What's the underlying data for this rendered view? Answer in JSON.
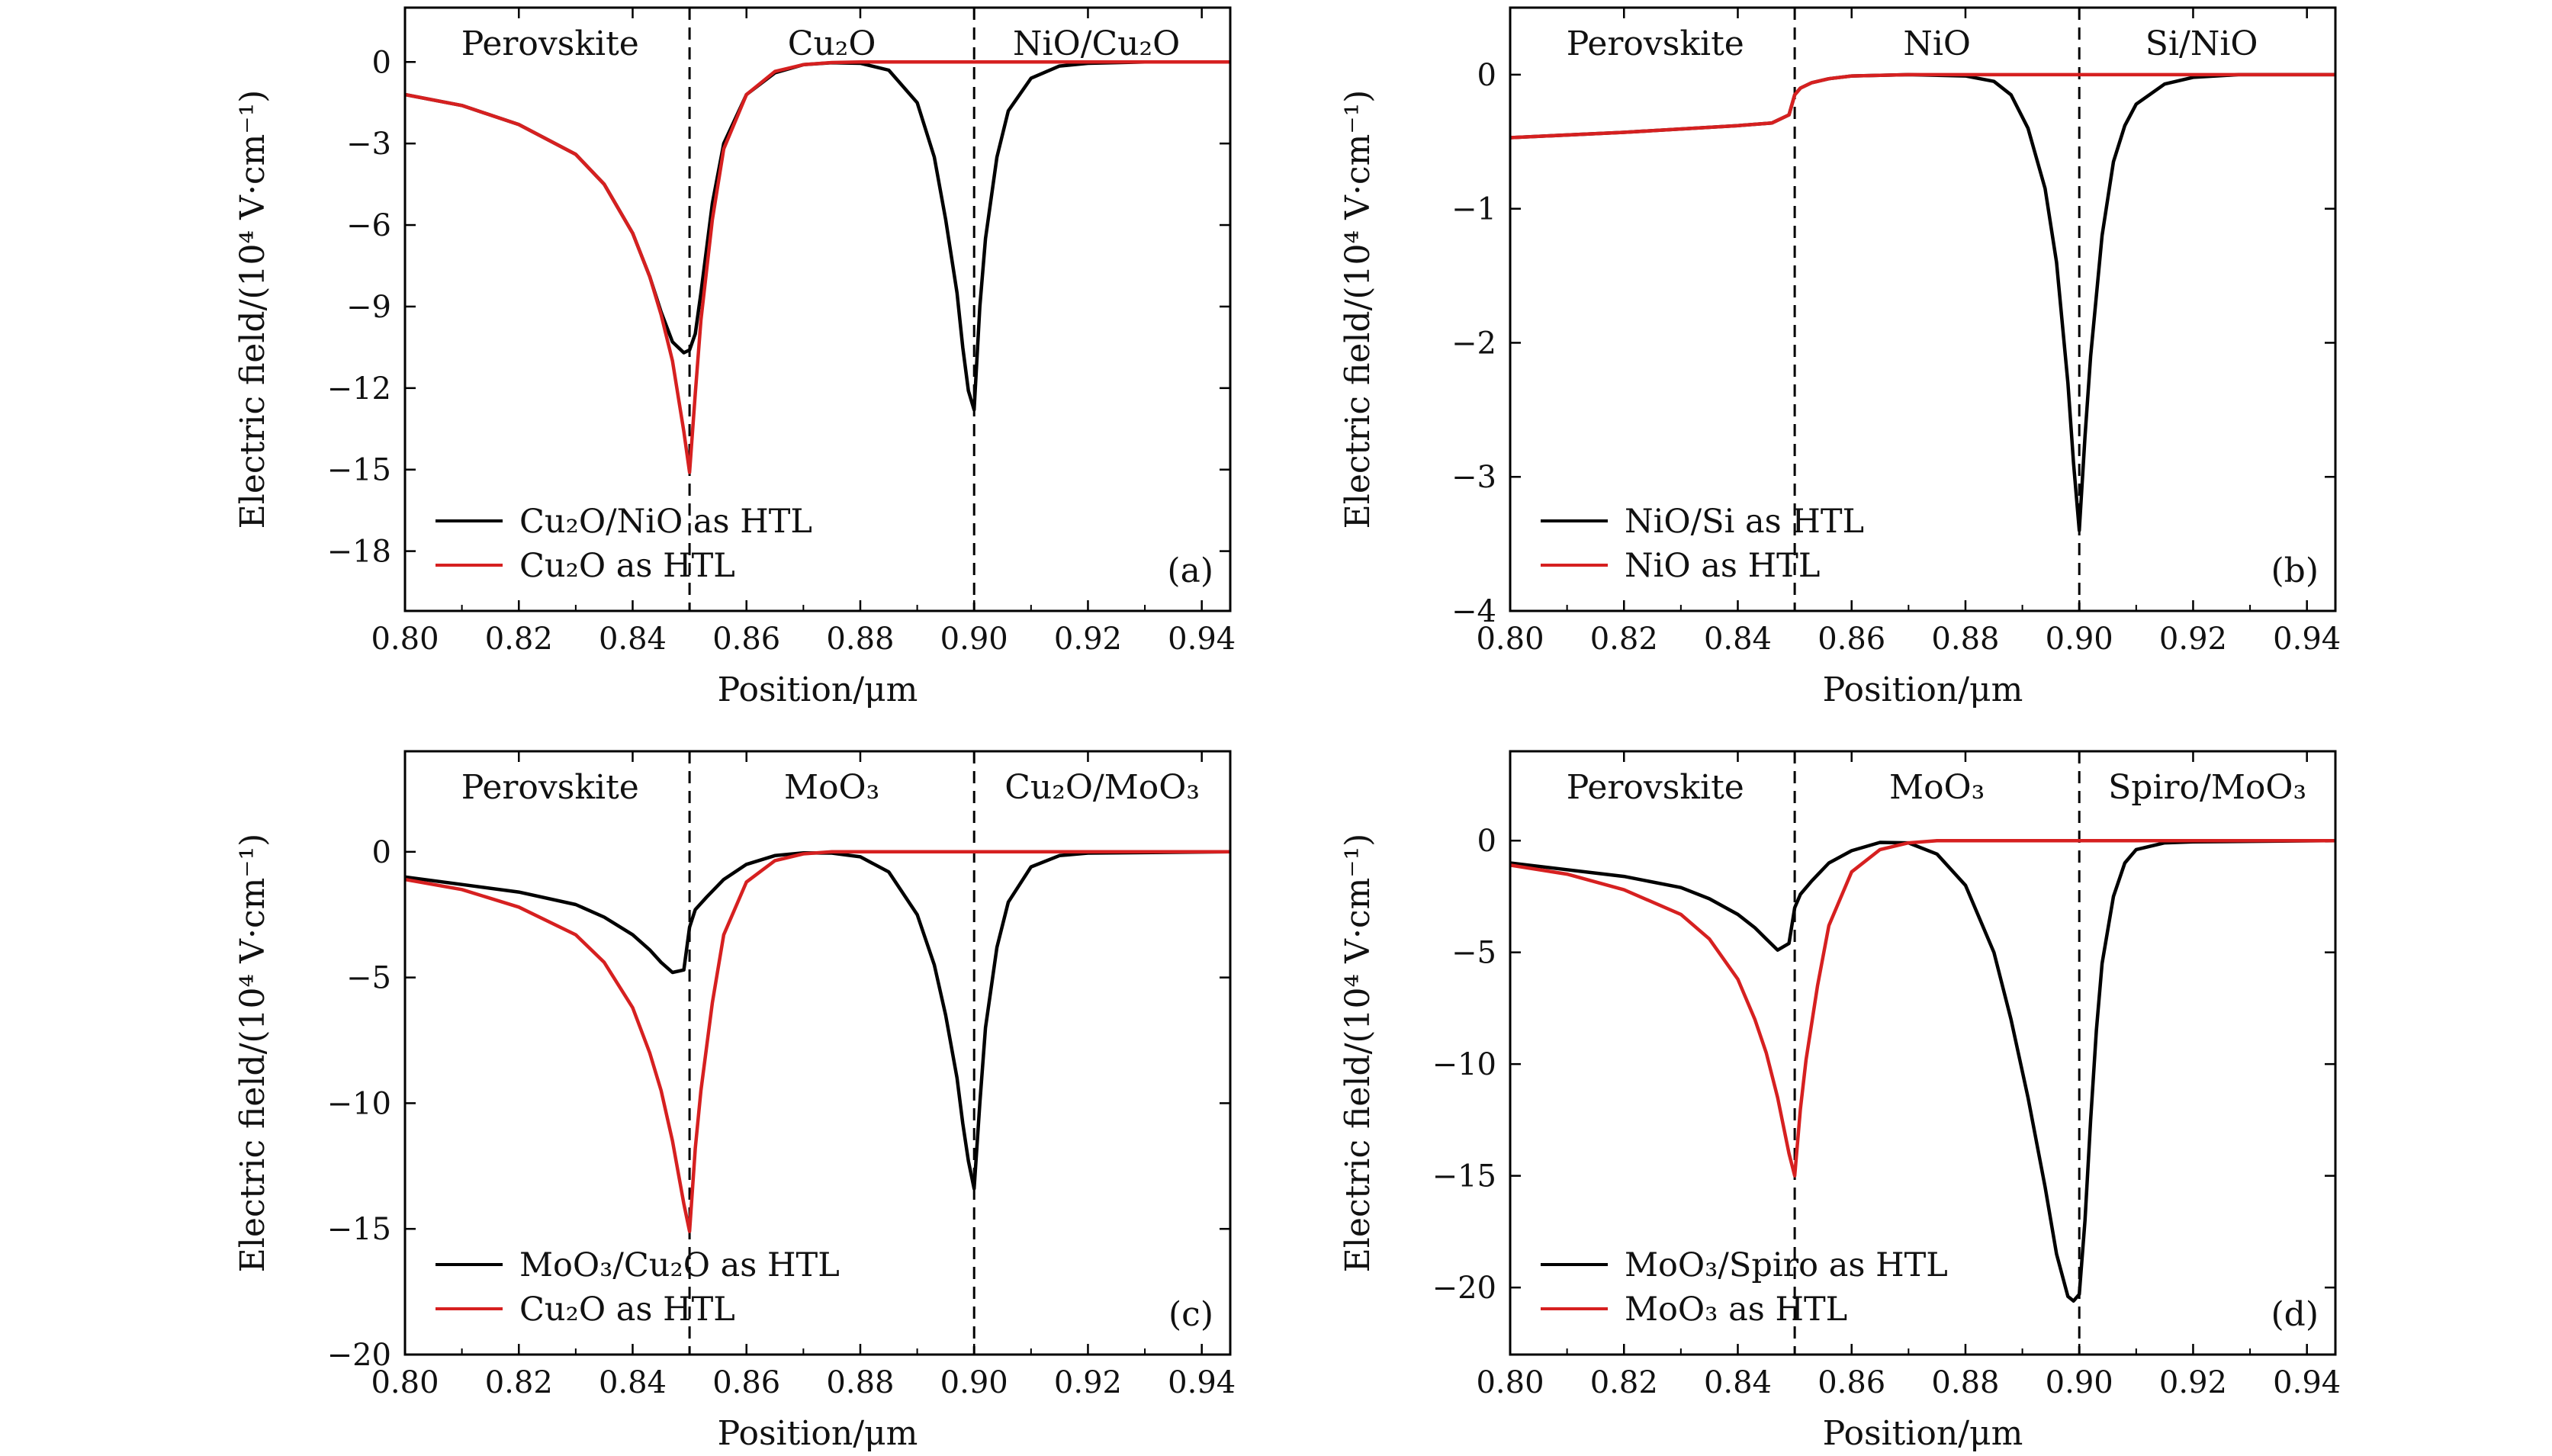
{
  "chart_data": [
    {
      "id": "a",
      "type": "line",
      "panel_label": "(a)",
      "xlabel": "Position/μm",
      "ylabel": "Electric field/(10⁴ V·cm⁻¹)",
      "xlim": [
        0.8,
        0.945
      ],
      "ylim": [
        -20.2,
        2.0
      ],
      "xticks": [
        0.8,
        0.82,
        0.84,
        0.86,
        0.88,
        0.9,
        0.92,
        0.94
      ],
      "xtick_labels": [
        "0.80",
        "0.82",
        "0.84",
        "0.86",
        "0.88",
        "0.90",
        "0.92",
        "0.94"
      ],
      "yticks": [
        0,
        -3,
        -6,
        -9,
        -12,
        -15,
        -18
      ],
      "ytick_labels": [
        "0",
        "−3",
        "−6",
        "−9",
        "−12",
        "−15",
        "−18"
      ],
      "boundaries": [
        0.85,
        0.9
      ],
      "regions": [
        {
          "label": "Perovskite",
          "x": 0.8255
        },
        {
          "label": "Cu₂O",
          "x": 0.875
        },
        {
          "label": "NiO/Cu₂O",
          "x": 0.9215
        }
      ],
      "legend_position": "bottom-left",
      "series": [
        {
          "name": "Cu₂O/NiO as HTL",
          "color": "#000000",
          "x": [
            0.8,
            0.81,
            0.82,
            0.83,
            0.835,
            0.84,
            0.843,
            0.845,
            0.847,
            0.849,
            0.85,
            0.851,
            0.852,
            0.854,
            0.856,
            0.86,
            0.865,
            0.87,
            0.875,
            0.88,
            0.885,
            0.89,
            0.893,
            0.895,
            0.897,
            0.898,
            0.899,
            0.9,
            0.901,
            0.902,
            0.904,
            0.906,
            0.91,
            0.915,
            0.92,
            0.93,
            0.945
          ],
          "y": [
            -1.2,
            -1.6,
            -2.3,
            -3.4,
            -4.5,
            -6.3,
            -7.9,
            -9.2,
            -10.3,
            -10.7,
            -10.6,
            -10.0,
            -8.5,
            -5.2,
            -3.0,
            -1.2,
            -0.4,
            -0.1,
            -0.03,
            -0.05,
            -0.3,
            -1.5,
            -3.5,
            -5.8,
            -8.5,
            -10.5,
            -12.1,
            -12.8,
            -9.0,
            -6.5,
            -3.5,
            -1.8,
            -0.6,
            -0.15,
            -0.05,
            0,
            0
          ]
        },
        {
          "name": "Cu₂O as HTL",
          "color": "#d62020",
          "x": [
            0.8,
            0.81,
            0.82,
            0.83,
            0.835,
            0.84,
            0.843,
            0.845,
            0.847,
            0.849,
            0.85,
            0.851,
            0.852,
            0.854,
            0.856,
            0.86,
            0.865,
            0.87,
            0.875,
            0.88,
            0.9,
            0.945
          ],
          "y": [
            -1.2,
            -1.6,
            -2.3,
            -3.4,
            -4.5,
            -6.3,
            -7.9,
            -9.3,
            -11.0,
            -13.6,
            -15.1,
            -12.2,
            -9.5,
            -5.8,
            -3.2,
            -1.2,
            -0.35,
            -0.1,
            -0.02,
            0,
            0,
            0
          ]
        }
      ]
    },
    {
      "id": "b",
      "type": "line",
      "panel_label": "(b)",
      "xlabel": "Position/μm",
      "ylabel": "Electric field/(10⁴ V·cm⁻¹)",
      "xlim": [
        0.8,
        0.945
      ],
      "ylim": [
        -4.0,
        0.5
      ],
      "xticks": [
        0.8,
        0.82,
        0.84,
        0.86,
        0.88,
        0.9,
        0.92,
        0.94
      ],
      "xtick_labels": [
        "0.80",
        "0.82",
        "0.84",
        "0.86",
        "0.88",
        "0.90",
        "0.92",
        "0.94"
      ],
      "yticks": [
        0,
        -1,
        -2,
        -3,
        -4
      ],
      "ytick_labels": [
        "0",
        "−1",
        "−2",
        "−3",
        "−4"
      ],
      "boundaries": [
        0.85,
        0.9
      ],
      "regions": [
        {
          "label": "Perovskite",
          "x": 0.8255
        },
        {
          "label": "NiO",
          "x": 0.875
        },
        {
          "label": "Si/NiO",
          "x": 0.9215
        }
      ],
      "legend_position": "bottom-left",
      "series": [
        {
          "name": "NiO/Si as HTL",
          "color": "#000000",
          "x": [
            0.8,
            0.82,
            0.84,
            0.846,
            0.849,
            0.85,
            0.851,
            0.853,
            0.856,
            0.86,
            0.87,
            0.88,
            0.885,
            0.888,
            0.891,
            0.894,
            0.896,
            0.898,
            0.899,
            0.9,
            0.901,
            0.902,
            0.904,
            0.906,
            0.908,
            0.91,
            0.915,
            0.92,
            0.928,
            0.945
          ],
          "y": [
            -0.47,
            -0.43,
            -0.38,
            -0.36,
            -0.3,
            -0.15,
            -0.1,
            -0.06,
            -0.03,
            -0.01,
            0,
            -0.01,
            -0.05,
            -0.15,
            -0.4,
            -0.85,
            -1.4,
            -2.3,
            -2.9,
            -3.4,
            -2.7,
            -2.1,
            -1.2,
            -0.65,
            -0.38,
            -0.22,
            -0.07,
            -0.02,
            0,
            0
          ]
        },
        {
          "name": "NiO as HTL",
          "color": "#d62020",
          "x": [
            0.8,
            0.82,
            0.84,
            0.846,
            0.849,
            0.85,
            0.851,
            0.853,
            0.856,
            0.86,
            0.87,
            0.9,
            0.945
          ],
          "y": [
            -0.47,
            -0.43,
            -0.38,
            -0.36,
            -0.3,
            -0.15,
            -0.1,
            -0.06,
            -0.03,
            -0.01,
            0,
            0,
            0
          ]
        }
      ]
    },
    {
      "id": "c",
      "type": "line",
      "panel_label": "(c)",
      "xlabel": "Position/μm",
      "ylabel": "Electric field/(10⁴ V·cm⁻¹)",
      "xlim": [
        0.8,
        0.945
      ],
      "ylim": [
        -20.0,
        4.0
      ],
      "xticks": [
        0.8,
        0.82,
        0.84,
        0.86,
        0.88,
        0.9,
        0.92,
        0.94
      ],
      "xtick_labels": [
        "0.80",
        "0.82",
        "0.84",
        "0.86",
        "0.88",
        "0.90",
        "0.92",
        "0.94"
      ],
      "yticks": [
        0,
        -5,
        -10,
        -15,
        -20
      ],
      "ytick_labels": [
        "0",
        "−5",
        "−10",
        "−15",
        "−20"
      ],
      "boundaries": [
        0.85,
        0.9
      ],
      "regions": [
        {
          "label": "Perovskite",
          "x": 0.8255
        },
        {
          "label": "MoO₃",
          "x": 0.875
        },
        {
          "label": "Cu₂O/MoO₃",
          "x": 0.9225
        }
      ],
      "legend_position": "bottom-left",
      "series": [
        {
          "name": "MoO₃/Cu₂O as HTL",
          "color": "#000000",
          "x": [
            0.8,
            0.81,
            0.82,
            0.83,
            0.835,
            0.84,
            0.843,
            0.845,
            0.847,
            0.849,
            0.85,
            0.851,
            0.853,
            0.856,
            0.86,
            0.865,
            0.87,
            0.875,
            0.88,
            0.885,
            0.89,
            0.893,
            0.895,
            0.897,
            0.898,
            0.899,
            0.9,
            0.901,
            0.902,
            0.904,
            0.906,
            0.91,
            0.915,
            0.92,
            0.945
          ],
          "y": [
            -1.0,
            -1.3,
            -1.6,
            -2.1,
            -2.6,
            -3.3,
            -3.9,
            -4.4,
            -4.8,
            -4.7,
            -3.0,
            -2.3,
            -1.8,
            -1.1,
            -0.5,
            -0.15,
            -0.04,
            -0.05,
            -0.2,
            -0.8,
            -2.5,
            -4.5,
            -6.5,
            -9.0,
            -10.8,
            -12.3,
            -13.4,
            -10.0,
            -7.0,
            -3.8,
            -2.0,
            -0.6,
            -0.15,
            -0.05,
            0
          ]
        },
        {
          "name": "Cu₂O as HTL",
          "color": "#d62020",
          "x": [
            0.8,
            0.81,
            0.82,
            0.83,
            0.835,
            0.84,
            0.843,
            0.845,
            0.847,
            0.849,
            0.85,
            0.851,
            0.852,
            0.854,
            0.856,
            0.86,
            0.865,
            0.87,
            0.875,
            0.88,
            0.9,
            0.945
          ],
          "y": [
            -1.1,
            -1.5,
            -2.2,
            -3.3,
            -4.4,
            -6.2,
            -8.0,
            -9.5,
            -11.5,
            -14.0,
            -15.1,
            -11.8,
            -9.5,
            -6.0,
            -3.3,
            -1.2,
            -0.35,
            -0.08,
            0,
            0,
            0,
            0
          ]
        }
      ]
    },
    {
      "id": "d",
      "type": "line",
      "panel_label": "(d)",
      "xlabel": "Position/μm",
      "ylabel": "Electric field/(10⁴ V·cm⁻¹)",
      "xlim": [
        0.8,
        0.945
      ],
      "ylim": [
        -23.0,
        4.0
      ],
      "xticks": [
        0.8,
        0.82,
        0.84,
        0.86,
        0.88,
        0.9,
        0.92,
        0.94
      ],
      "xtick_labels": [
        "0.80",
        "0.82",
        "0.84",
        "0.86",
        "0.88",
        "0.90",
        "0.92",
        "0.94"
      ],
      "yticks": [
        0,
        -5,
        -10,
        -15,
        -20
      ],
      "ytick_labels": [
        "0",
        "−5",
        "−10",
        "−15",
        "−20"
      ],
      "boundaries": [
        0.85,
        0.9
      ],
      "regions": [
        {
          "label": "Perovskite",
          "x": 0.8255
        },
        {
          "label": "MoO₃",
          "x": 0.875
        },
        {
          "label": "Spiro/MoO₃",
          "x": 0.9225
        }
      ],
      "legend_position": "bottom-left",
      "series": [
        {
          "name": "MoO₃/Spiro as HTL",
          "color": "#000000",
          "x": [
            0.8,
            0.81,
            0.82,
            0.83,
            0.835,
            0.84,
            0.843,
            0.845,
            0.847,
            0.849,
            0.85,
            0.851,
            0.853,
            0.856,
            0.86,
            0.865,
            0.87,
            0.875,
            0.88,
            0.885,
            0.888,
            0.891,
            0.894,
            0.896,
            0.898,
            0.899,
            0.9,
            0.901,
            0.902,
            0.903,
            0.904,
            0.906,
            0.908,
            0.91,
            0.915,
            0.92,
            0.945
          ],
          "y": [
            -1.0,
            -1.3,
            -1.6,
            -2.1,
            -2.6,
            -3.3,
            -3.9,
            -4.4,
            -4.9,
            -4.6,
            -3.0,
            -2.4,
            -1.8,
            -1.0,
            -0.45,
            -0.08,
            -0.1,
            -0.6,
            -2.0,
            -5.0,
            -8.0,
            -11.5,
            -15.5,
            -18.5,
            -20.4,
            -20.6,
            -20.3,
            -17.0,
            -12.5,
            -8.5,
            -5.5,
            -2.5,
            -1.0,
            -0.4,
            -0.1,
            -0.05,
            0
          ]
        },
        {
          "name": "MoO₃ as HTL",
          "color": "#d62020",
          "x": [
            0.8,
            0.81,
            0.82,
            0.83,
            0.835,
            0.84,
            0.843,
            0.845,
            0.847,
            0.849,
            0.85,
            0.851,
            0.852,
            0.854,
            0.856,
            0.86,
            0.865,
            0.87,
            0.875,
            0.88,
            0.9,
            0.945
          ],
          "y": [
            -1.1,
            -1.5,
            -2.2,
            -3.3,
            -4.4,
            -6.2,
            -8.0,
            -9.5,
            -11.5,
            -14.0,
            -15.0,
            -12.0,
            -9.8,
            -6.5,
            -3.8,
            -1.4,
            -0.4,
            -0.1,
            0,
            0,
            0,
            0
          ]
        }
      ]
    }
  ]
}
